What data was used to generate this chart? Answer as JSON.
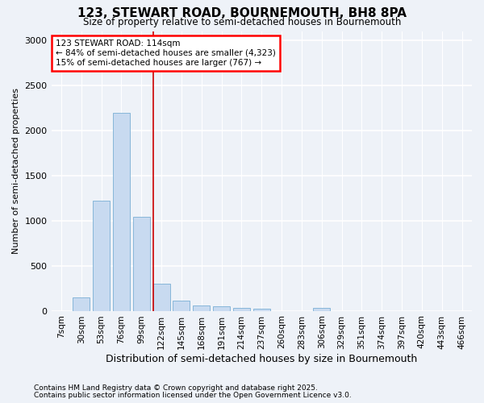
{
  "title": "123, STEWART ROAD, BOURNEMOUTH, BH8 8PA",
  "subtitle": "Size of property relative to semi-detached houses in Bournemouth",
  "xlabel": "Distribution of semi-detached houses by size in Bournemouth",
  "ylabel": "Number of semi-detached properties",
  "footnote1": "Contains HM Land Registry data © Crown copyright and database right 2025.",
  "footnote2": "Contains public sector information licensed under the Open Government Licence v3.0.",
  "annotation_title": "123 STEWART ROAD: 114sqm",
  "annotation_line1": "← 84% of semi-detached houses are smaller (4,323)",
  "annotation_line2": "15% of semi-detached houses are larger (767) →",
  "bar_labels": [
    "7sqm",
    "30sqm",
    "53sqm",
    "76sqm",
    "99sqm",
    "122sqm",
    "145sqm",
    "168sqm",
    "191sqm",
    "214sqm",
    "237sqm",
    "260sqm",
    "283sqm",
    "306sqm",
    "329sqm",
    "351sqm",
    "374sqm",
    "397sqm",
    "420sqm",
    "443sqm",
    "466sqm"
  ],
  "bar_values": [
    0,
    150,
    1220,
    2200,
    1040,
    300,
    110,
    55,
    50,
    35,
    20,
    0,
    0,
    30,
    0,
    0,
    0,
    0,
    0,
    0,
    0
  ],
  "bar_color": "#c8daf0",
  "bar_edge_color": "#7aafd4",
  "vline_color": "#cc0000",
  "background_color": "#eef2f8",
  "grid_color": "#ffffff",
  "ylim": [
    0,
    3100
  ],
  "yticks": [
    0,
    500,
    1000,
    1500,
    2000,
    2500,
    3000
  ]
}
